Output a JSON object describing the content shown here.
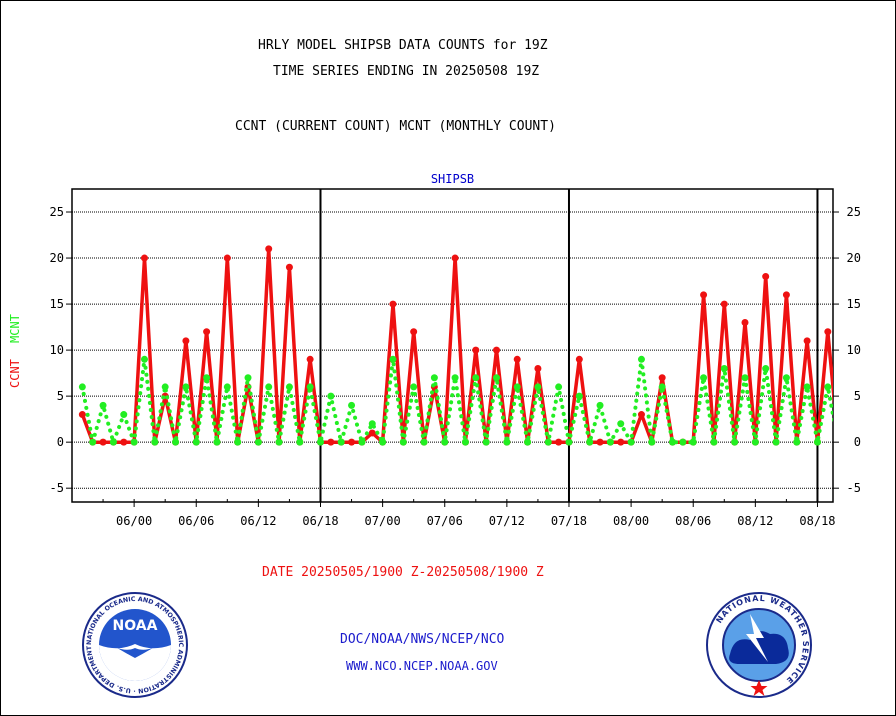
{
  "header": {
    "title_line1": "HRLY MODEL SHIPSB DATA COUNTS for 19Z",
    "title_line2": "TIME SERIES ENDING IN 20250508 19Z",
    "subtitle": "CCNT (CURRENT COUNT) MCNT (MONTHLY COUNT)"
  },
  "footer": {
    "date_range": "DATE 20250505/1900 Z-20250508/1900 Z",
    "org_line": "DOC/NOAA/NWS/NCEP/NCO",
    "website": "WWW.NCO.NCEP.NOAA.GOV"
  },
  "logos": {
    "noaa_text": "NOAA",
    "noaa_ring_text": "NATIONAL OCEANIC AND ATMOSPHERIC ADMINISTRATION · U.S. DEPARTMENT OF COMMERCE ·",
    "nws_ring_text": "NATIONAL WEATHER SERVICE"
  },
  "colors": {
    "ccnt": "#ee1111",
    "mcnt": "#22ee22",
    "panel_title": "#0000cc",
    "footer_text": "#1a1acc",
    "date_text": "#ee1111"
  },
  "chart_data": {
    "type": "line",
    "panel_title": "SHIPSB",
    "ylabel": "CCNT",
    "ylabel2": "MCNT",
    "ylim": [
      -6.5,
      27.5
    ],
    "yticks": [
      -5,
      0,
      5,
      10,
      15,
      20,
      25
    ],
    "grid": true,
    "x_unit": "hours (3-day hourly series, 05/19Z to 08/19Z)",
    "xlim": [
      -1,
      72.5
    ],
    "xticks": [
      {
        "x": 5,
        "label": "06/00"
      },
      {
        "x": 11,
        "label": "06/06"
      },
      {
        "x": 17,
        "label": "06/12"
      },
      {
        "x": 23,
        "label": "06/18"
      },
      {
        "x": 29,
        "label": "07/00"
      },
      {
        "x": 35,
        "label": "07/06"
      },
      {
        "x": 41,
        "label": "07/12"
      },
      {
        "x": 47,
        "label": "07/18"
      },
      {
        "x": 53,
        "label": "08/00"
      },
      {
        "x": 59,
        "label": "08/06"
      },
      {
        "x": 65,
        "label": "08/12"
      },
      {
        "x": 71,
        "label": "08/18"
      }
    ],
    "day_dividers": [
      23,
      47,
      71
    ],
    "series": [
      {
        "name": "CCNT",
        "style": "solid",
        "values": [
          3,
          0,
          0,
          0,
          0,
          0,
          20,
          0,
          5,
          0,
          11,
          0,
          12,
          0,
          20,
          0,
          6,
          0,
          21,
          0,
          19,
          0,
          9,
          0,
          0,
          0,
          0,
          0,
          1,
          0,
          15,
          0,
          12,
          0,
          6,
          0,
          20,
          0,
          10,
          0,
          10,
          0,
          9,
          0,
          8,
          0,
          0,
          0,
          9,
          0,
          0,
          0,
          0,
          0,
          3,
          0,
          7,
          0,
          0,
          0,
          16,
          0,
          15,
          0,
          13,
          0,
          18,
          0,
          16,
          0,
          11,
          0,
          12,
          0,
          9
        ]
      },
      {
        "name": "MCNT",
        "style": "dotted",
        "values": [
          6,
          0,
          4,
          0,
          3,
          0,
          9,
          0,
          6,
          0,
          6,
          0,
          7,
          0,
          6,
          0,
          7,
          0,
          6,
          0,
          6,
          0,
          6,
          0,
          5,
          0,
          4,
          0,
          2,
          0,
          9,
          0,
          6,
          0,
          7,
          0,
          7,
          0,
          7,
          0,
          7,
          0,
          6,
          0,
          6,
          0,
          6,
          0,
          5,
          0,
          4,
          0,
          2,
          0,
          9,
          0,
          6,
          0,
          0,
          0,
          7,
          0,
          8,
          0,
          7,
          0,
          8,
          0,
          7,
          0,
          6,
          0,
          6,
          0,
          5
        ]
      }
    ]
  }
}
